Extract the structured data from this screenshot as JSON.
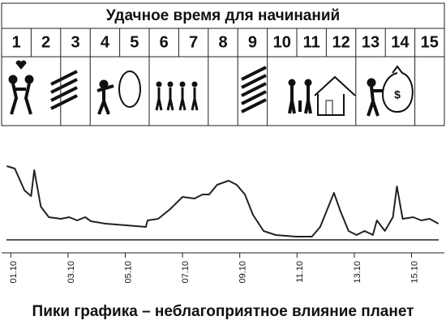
{
  "header": {
    "title": "Удачное время для начинаний",
    "days": [
      1,
      2,
      3,
      4,
      5,
      6,
      7,
      8,
      9,
      10,
      11,
      12,
      13,
      14,
      15
    ]
  },
  "chart_data": {
    "type": "line",
    "x": [
      0.86,
      1.14,
      1.48,
      1.71,
      1.82,
      2.05,
      2.33,
      2.75,
      3.04,
      3.32,
      3.6,
      3.8,
      4.31,
      5.72,
      5.78,
      6.15,
      6.57,
      7.0,
      7.42,
      7.7,
      7.93,
      8.21,
      8.61,
      8.89,
      9.18,
      9.46,
      9.83,
      10.25,
      10.96,
      11.52,
      11.81,
      12.29,
      12.51,
      12.8,
      13.08,
      13.36,
      13.65,
      13.79,
      14.07,
      14.35,
      14.49,
      14.69,
      15.06,
      15.34,
      15.63,
      15.94
    ],
    "series": [
      {
        "color": "#222222",
        "values": [
          91,
          88,
          61,
          54,
          86,
          41,
          28,
          26,
          28,
          24,
          28,
          23,
          20,
          16,
          24,
          26,
          38,
          53,
          51,
          56,
          56,
          68,
          73,
          68,
          56,
          31,
          11,
          6,
          4,
          4,
          16,
          58,
          36,
          11,
          6,
          11,
          6,
          24,
          11,
          28,
          66,
          26,
          28,
          24,
          26,
          20
        ]
      }
    ],
    "xlim": [
      0.85,
      15.95
    ],
    "xticks": [
      {
        "value": 1,
        "label": "01.10"
      },
      {
        "value": 3,
        "label": "03.10"
      },
      {
        "value": 5,
        "label": "05.10"
      },
      {
        "value": 7,
        "label": "07.10"
      },
      {
        "value": 9,
        "label": "09.10"
      },
      {
        "value": 11,
        "label": "11.10"
      },
      {
        "value": 13,
        "label": "13.10"
      },
      {
        "value": 15,
        "label": "15.10"
      }
    ],
    "ylim": [
      0,
      100
    ]
  },
  "caption": "Пики графика – неблагоприятное влияние планет"
}
